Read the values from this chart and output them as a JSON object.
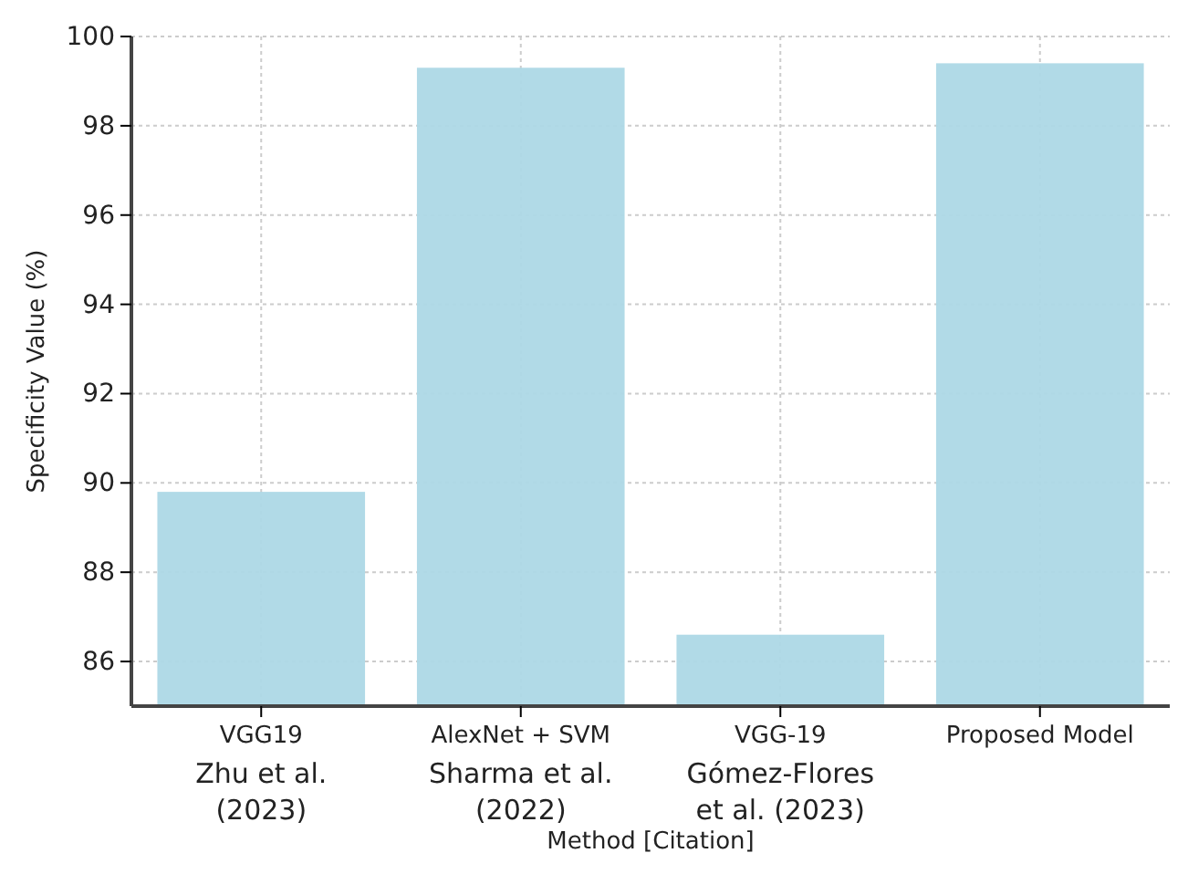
{
  "chart_data": {
    "type": "bar",
    "xlabel": "Method [Citation]",
    "ylabel": "Specificity Value (%)",
    "categories": [
      "VGG19\nZhu et al.\n(2023)",
      "AlexNet + SVM\nSharma et al.\n(2022)",
      "VGG-19\nGómez-Flores\net al. (2023)",
      "Proposed Model"
    ],
    "values": [
      89.8,
      99.3,
      86.6,
      99.4
    ],
    "color": "#add8e6",
    "ylim": [
      85,
      100
    ],
    "yticks": [
      86,
      88,
      90,
      92,
      94,
      96,
      98,
      100
    ],
    "grid": true
  }
}
